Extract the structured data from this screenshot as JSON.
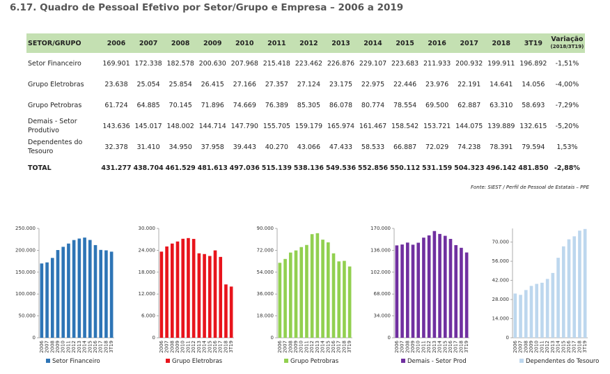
{
  "title": "6.17. Quadro de Pessoal Efetivo por Setor/Grupo e Empresa – 2006 a 2019",
  "table": {
    "header": [
      "SETOR/GRUPO",
      "2006",
      "2007",
      "2008",
      "2009",
      "2010",
      "2011",
      "2012",
      "2013",
      "2014",
      "2015",
      "2016",
      "2017",
      "2018",
      "3T19"
    ],
    "variation_header": [
      "Variação",
      "(2018/3T19)"
    ],
    "rows": [
      [
        "Setor Financeiro",
        "169.901",
        "172.338",
        "182.578",
        "200.630",
        "207.968",
        "215.418",
        "223.462",
        "226.876",
        "229.107",
        "223.683",
        "211.933",
        "200.932",
        "199.911",
        "196.892",
        "-1,51%"
      ],
      [
        "Grupo Eletrobras",
        "23.638",
        "25.054",
        "25.854",
        "26.415",
        "27.166",
        "27.357",
        "27.124",
        "23.175",
        "22.975",
        "22.446",
        "23.976",
        "22.191",
        "14.641",
        "14.056",
        "-4,00%"
      ],
      [
        "Grupo Petrobras",
        "61.724",
        "64.885",
        "70.145",
        "71.896",
        "74.669",
        "76.389",
        "85.305",
        "86.078",
        "80.774",
        "78.554",
        "69.500",
        "62.887",
        "63.310",
        "58.693",
        "-7,29%"
      ],
      [
        "Demais - Setor Produtivo",
        "143.636",
        "145.017",
        "148.002",
        "144.714",
        "147.790",
        "155.705",
        "159.179",
        "165.974",
        "161.467",
        "158.542",
        "153.721",
        "144.075",
        "139.889",
        "132.615",
        "-5,20%"
      ],
      [
        "Dependentes do Tesouro",
        "32.378",
        "31.410",
        "34.950",
        "37.958",
        "39.443",
        "40.270",
        "43.066",
        "47.433",
        "58.533",
        "66.887",
        "72.029",
        "74.238",
        "78.391",
        "79.594",
        "1,53%"
      ],
      [
        "TOTAL",
        "431.277",
        "438.704",
        "461.529",
        "481.613",
        "497.036",
        "515.139",
        "538.136",
        "549.536",
        "552.856",
        "550.112",
        "531.159",
        "504.323",
        "496.142",
        "481.850",
        "-2,88%"
      ]
    ]
  },
  "source": "Fonte: SIEST / Perfil de Pessoal de Estatais – PPE",
  "chart_data": [
    {
      "type": "bar",
      "categories": [
        "2006",
        "2007",
        "2008",
        "2009",
        "2010",
        "2011",
        "2012",
        "2013",
        "2014",
        "2015",
        "2016",
        "2017",
        "2018",
        "3T19"
      ],
      "series": [
        {
          "name": "Setor Financeiro",
          "color": "#2e75b6",
          "values": [
            169901,
            172338,
            182578,
            200630,
            207968,
            215418,
            223462,
            226876,
            229107,
            223683,
            211933,
            200932,
            199911,
            196892
          ]
        }
      ],
      "ylim": [
        0,
        250000
      ],
      "yticks": [
        0,
        {
          "value": 50000,
          "label": "50.000"
        },
        {
          "value": 100000,
          "label": "100.000"
        },
        {
          "value": 150000,
          "label": "150.000"
        },
        {
          "value": 200000,
          "label": "200.000"
        },
        {
          "value": 250000,
          "label": "250.000"
        }
      ]
    },
    {
      "type": "bar",
      "categories": [
        "2006",
        "2007",
        "2008",
        "2009",
        "2010",
        "2011",
        "2012",
        "2013",
        "2014",
        "2015",
        "2016",
        "2017",
        "2018",
        "3T19"
      ],
      "series": [
        {
          "name": "Grupo Eletrobras",
          "color": "#e8141c",
          "values": [
            23638,
            25054,
            25854,
            26415,
            27166,
            27357,
            27124,
            23175,
            22975,
            22446,
            23976,
            22191,
            14641,
            14056
          ]
        }
      ],
      "ylim": [
        0,
        30000
      ],
      "yticks": [
        0,
        {
          "value": 6000,
          "label": "6.000"
        },
        {
          "value": 12000,
          "label": "12.000"
        },
        {
          "value": 18000,
          "label": "18.000"
        },
        {
          "value": 24000,
          "label": "24.000"
        },
        {
          "value": 30000,
          "label": "30.000"
        }
      ]
    },
    {
      "type": "bar",
      "categories": [
        "2006",
        "2007",
        "2008",
        "2009",
        "2010",
        "2011",
        "2012",
        "2013",
        "2014",
        "2015",
        "2016",
        "2017",
        "2018",
        "3T19"
      ],
      "series": [
        {
          "name": "Grupo Petrobras",
          "color": "#92d050",
          "values": [
            61724,
            64885,
            70145,
            71896,
            74669,
            76389,
            85305,
            86078,
            80774,
            78554,
            69500,
            62887,
            63310,
            58693
          ]
        }
      ],
      "ylim": [
        0,
        90000
      ],
      "yticks": [
        0,
        {
          "value": 18000,
          "label": "18.000"
        },
        {
          "value": 36000,
          "label": "36.000"
        },
        {
          "value": 54000,
          "label": "54.000"
        },
        {
          "value": 72000,
          "label": "72.000"
        },
        {
          "value": 90000,
          "label": "90.000"
        }
      ]
    },
    {
      "type": "bar",
      "categories": [
        "2006",
        "2007",
        "2008",
        "2009",
        "2010",
        "2011",
        "2012",
        "2013",
        "2014",
        "2015",
        "2016",
        "2017",
        "2018",
        "3T19"
      ],
      "series": [
        {
          "name": "Demais - Setor Prod",
          "color": "#7030a0",
          "values": [
            143636,
            145017,
            148002,
            144714,
            147790,
            155705,
            159179,
            165974,
            161467,
            158542,
            153721,
            144075,
            139889,
            132615
          ]
        }
      ],
      "ylim": [
        0,
        170000
      ],
      "yticks": [
        0,
        {
          "value": 34000,
          "label": "34.000"
        },
        {
          "value": 68000,
          "label": "68.000"
        },
        {
          "value": 102000,
          "label": "102.000"
        },
        {
          "value": 136000,
          "label": "136.000"
        },
        {
          "value": 170000,
          "label": "170.000"
        }
      ]
    },
    {
      "type": "bar",
      "categories": [
        "2006",
        "2007",
        "2008",
        "2009",
        "2010",
        "2011",
        "2012",
        "2013",
        "2014",
        "2015",
        "2016",
        "2017",
        "2018",
        "3T19"
      ],
      "series": [
        {
          "name": "Dependentes do Tesouro",
          "color": "#bdd7ee",
          "values": [
            32378,
            31410,
            34950,
            37958,
            39443,
            40270,
            43066,
            47433,
            58533,
            66887,
            72029,
            74238,
            78391,
            79594
          ]
        }
      ],
      "ylim": [
        0,
        80000
      ],
      "yticks": [
        0,
        {
          "value": 14000,
          "label": "14.000"
        },
        {
          "value": 28000,
          "label": "28.000"
        },
        {
          "value": 42000,
          "label": "42.000"
        },
        {
          "value": 56000,
          "label": "56.000"
        },
        {
          "value": 70000,
          "label": "70.000"
        }
      ]
    }
  ]
}
